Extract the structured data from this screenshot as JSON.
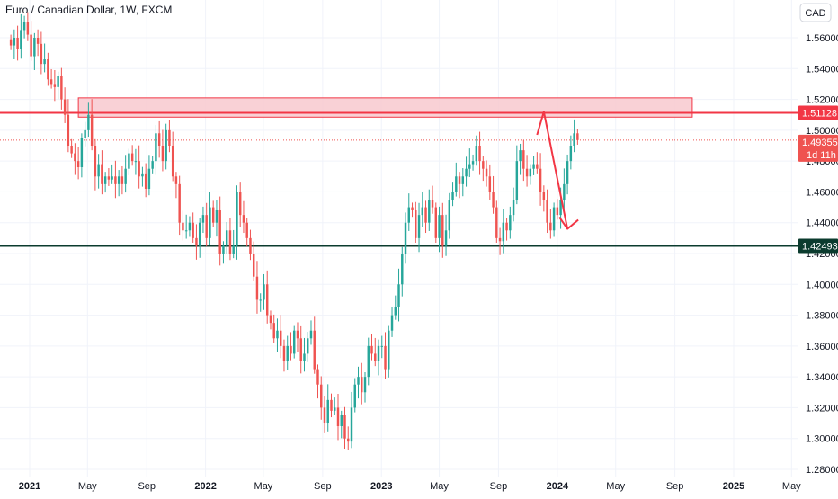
{
  "header": {
    "title": "Euro / Canadian Dollar, 1W, FXCM",
    "currency_label": "CAD"
  },
  "colors": {
    "up": "#26a69a",
    "down": "#ef5350",
    "resistance_line": "#f23645",
    "support_line": "#0b3b2e",
    "zone_fill": "#f8c9cf",
    "zone_stroke": "#f23645",
    "projection": "#f23645",
    "grid": "#f0f3fa"
  },
  "price_badges": {
    "resistance": "1.51128",
    "current_price": "1.49355",
    "countdown": "1d 11h",
    "support": "1.42493"
  },
  "chart_data": {
    "type": "candlestick",
    "ylim": [
      1.27,
      1.575
    ],
    "y_ticks": [
      "1.56000",
      "1.54000",
      "1.52000",
      "1.50000",
      "1.48000",
      "1.46000",
      "1.44000",
      "1.42000",
      "1.40000",
      "1.38000",
      "1.36000",
      "1.34000",
      "1.32000",
      "1.30000",
      "1.28000"
    ],
    "x_ticks": [
      {
        "label": "2021",
        "date": "2021-01-01",
        "bold": true
      },
      {
        "label": "May",
        "date": "2021-05-01"
      },
      {
        "label": "Sep",
        "date": "2021-09-01"
      },
      {
        "label": "2022",
        "date": "2022-01-01",
        "bold": true
      },
      {
        "label": "May",
        "date": "2022-05-01"
      },
      {
        "label": "Sep",
        "date": "2022-09-01"
      },
      {
        "label": "2023",
        "date": "2023-01-01",
        "bold": true
      },
      {
        "label": "May",
        "date": "2023-05-01"
      },
      {
        "label": "Sep",
        "date": "2023-09-01"
      },
      {
        "label": "2024",
        "date": "2024-01-01",
        "bold": true
      },
      {
        "label": "May",
        "date": "2024-05-01"
      },
      {
        "label": "Sep",
        "date": "2024-09-01"
      },
      {
        "label": "2025",
        "date": "2025-01-01",
        "bold": true
      },
      {
        "label": "May",
        "date": "2025-05-01"
      }
    ],
    "first_candle_date": "2020-11-23",
    "closes": [
      1.555,
      1.56,
      1.553,
      1.565,
      1.57,
      1.562,
      1.548,
      1.56,
      1.556,
      1.543,
      1.546,
      1.533,
      1.53,
      1.528,
      1.535,
      1.52,
      1.51,
      1.49,
      1.485,
      1.48,
      1.476,
      1.495,
      1.5,
      1.51,
      1.49,
      1.47,
      1.478,
      1.465,
      1.47,
      1.468,
      1.47,
      1.465,
      1.47,
      1.465,
      1.475,
      1.485,
      1.48,
      1.48,
      1.47,
      1.472,
      1.462,
      1.475,
      1.48,
      1.498,
      1.49,
      1.48,
      1.5,
      1.49,
      1.47,
      1.465,
      1.44,
      1.435,
      1.435,
      1.44,
      1.43,
      1.425,
      1.44,
      1.445,
      1.43,
      1.45,
      1.44,
      1.448,
      1.42,
      1.425,
      1.435,
      1.42,
      1.425,
      1.46,
      1.445,
      1.44,
      1.43,
      1.42,
      1.405,
      1.39,
      1.39,
      1.4,
      1.38,
      1.375,
      1.365,
      1.37,
      1.36,
      1.35,
      1.36,
      1.355,
      1.37,
      1.365,
      1.35,
      1.355,
      1.365,
      1.37,
      1.345,
      1.335,
      1.32,
      1.31,
      1.325,
      1.318,
      1.32,
      1.308,
      1.315,
      1.3,
      1.298,
      1.32,
      1.335,
      1.34,
      1.33,
      1.34,
      1.36,
      1.355,
      1.35,
      1.36,
      1.36,
      1.345,
      1.37,
      1.38,
      1.385,
      1.4,
      1.42,
      1.44,
      1.45,
      1.448,
      1.43,
      1.445,
      1.45,
      1.44,
      1.455,
      1.45,
      1.43,
      1.445,
      1.425,
      1.435,
      1.455,
      1.46,
      1.47,
      1.465,
      1.47,
      1.475,
      1.478,
      1.48,
      1.49,
      1.48,
      1.475,
      1.47,
      1.46,
      1.45,
      1.43,
      1.428,
      1.44,
      1.435,
      1.445,
      1.455,
      1.48,
      1.487,
      1.475,
      1.47,
      1.475,
      1.478,
      1.475,
      1.46,
      1.455,
      1.44,
      1.435,
      1.45,
      1.445,
      1.455,
      1.465,
      1.48,
      1.49,
      1.498,
      1.4936
    ]
  },
  "annotations": {
    "resistance_zone": {
      "y_top": 1.521,
      "y_bottom": 1.5085,
      "date_start": "2021-04-12",
      "date_end": "2024-10-07"
    },
    "resistance_level": 1.51128,
    "support_level": 1.42493,
    "current_level": 1.49355,
    "projection_path": [
      {
        "date": "2023-11-20",
        "y": 1.497
      },
      {
        "date": "2023-12-04",
        "y": 1.512
      },
      {
        "date": "2024-01-22",
        "y": 1.436
      }
    ]
  }
}
